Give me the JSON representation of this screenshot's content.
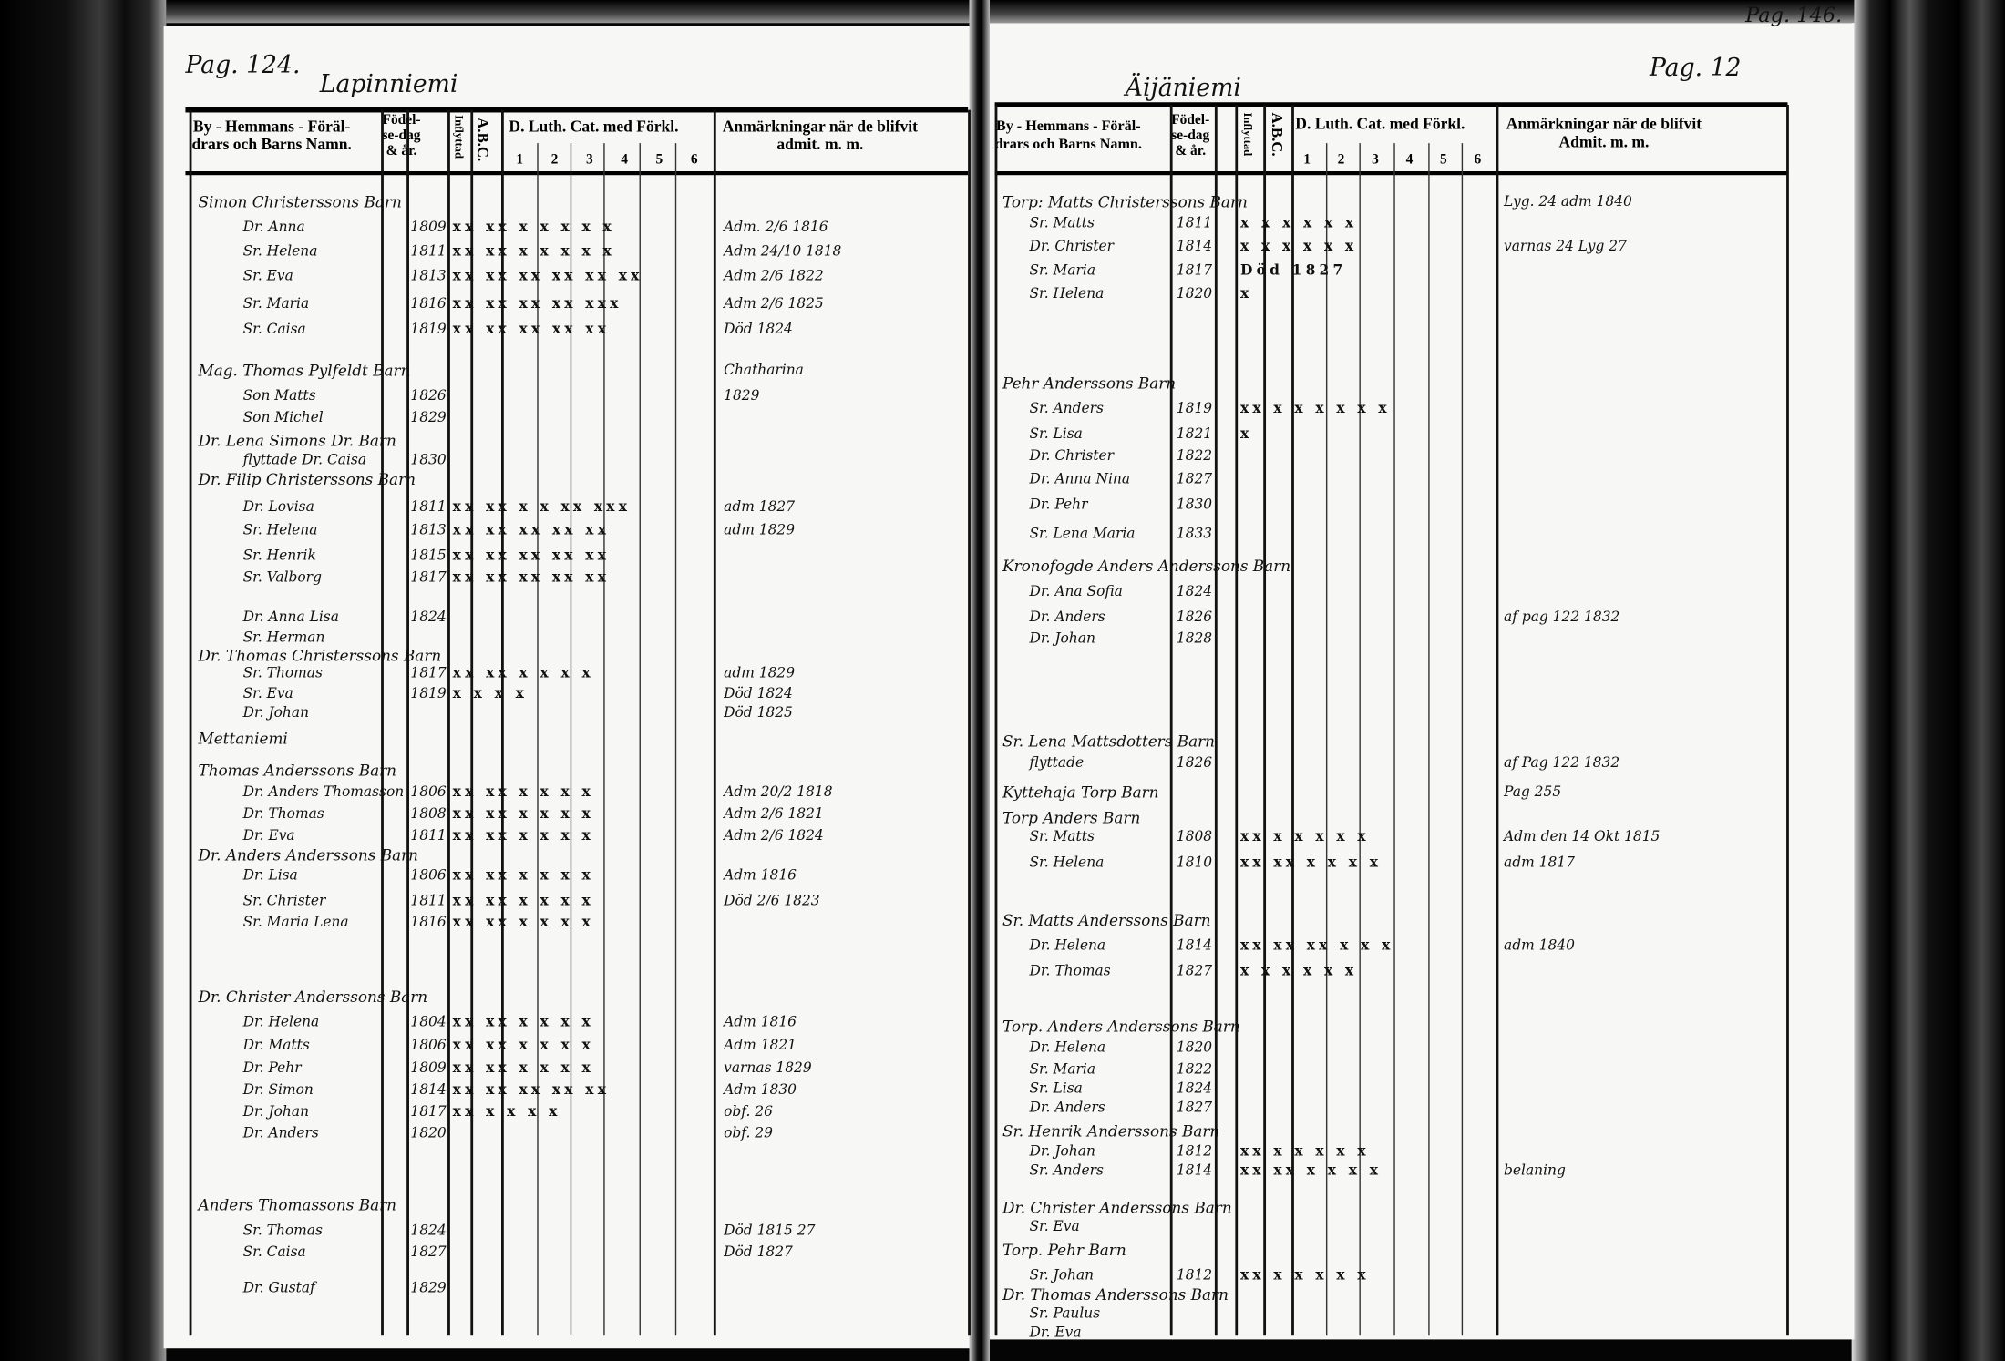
{
  "left_page": {
    "page_number": "Pag. 124.",
    "village": "Lapinniemi",
    "headers": {
      "name": "By - Hemmans - Föräl- drars och Barns Namn.",
      "name_line1": "By - Hemmans - Föräl-",
      "name_line2": "drars och Barns Namn.",
      "birth_line1": "Födel-",
      "birth_line2": "se-dag",
      "birth_line3": "& år.",
      "moved_in": "Inflyttad",
      "abc": "A.B.C.",
      "catechism": "D. Luth. Cat. med Förkl.",
      "catechism_cols": [
        "1",
        "2",
        "3",
        "4",
        "5",
        "6"
      ],
      "remarks_line1": "Anmärkningar när de blifvit",
      "remarks_line2": "admit. m. m."
    },
    "rows": [
      {
        "type": "household",
        "name": "Simon Christerssons Barn",
        "date": "",
        "marks": "",
        "remark": ""
      },
      {
        "type": "member",
        "name": "Dr. Anna",
        "date": "1809",
        "marks": "xx xx x x x x x",
        "remark": "Adm. 2/6 1816"
      },
      {
        "type": "member",
        "name": "Sr. Helena",
        "date": "1811",
        "marks": "xx xx x x x x x",
        "remark": "Adm 24/10 1818"
      },
      {
        "type": "member",
        "name": "Sr. Eva",
        "date": "1813",
        "marks": "xx xx xx xx xx xx",
        "remark": "Adm 2/6 1822"
      },
      {
        "type": "member",
        "name": "Sr. Maria",
        "date": "1816",
        "marks": "xx xx xx xx xxx",
        "remark": "Adm 2/6 1825"
      },
      {
        "type": "member",
        "name": "Sr. Caisa",
        "date": "1819",
        "marks": "xx xx xx xx xx",
        "remark": "Död 1824"
      },
      {
        "type": "household",
        "name": "Mag. Thomas Pylfeldt Barn",
        "date": "",
        "marks": "",
        "remark": "Chatharina"
      },
      {
        "type": "member",
        "name": "Son Matts",
        "date": "1826",
        "marks": "",
        "remark": "1829"
      },
      {
        "type": "member",
        "name": "Son Michel",
        "date": "1829",
        "marks": "",
        "remark": ""
      },
      {
        "type": "household",
        "name": "Dr. Lena Simons Dr. Barn",
        "date": "",
        "marks": "",
        "remark": ""
      },
      {
        "type": "member",
        "name": "flyttade Dr. Caisa",
        "date": "1830",
        "marks": "",
        "remark": ""
      },
      {
        "type": "household",
        "name": "Dr. Filip Christerssons Barn",
        "date": "",
        "marks": "",
        "remark": ""
      },
      {
        "type": "member",
        "name": "Dr. Lovisa",
        "date": "1811",
        "marks": "xx xx x x xx xxx",
        "remark": "adm 1827"
      },
      {
        "type": "member",
        "name": "Sr. Helena",
        "date": "1813",
        "marks": "xx xx xx xx xx",
        "remark": "adm 1829"
      },
      {
        "type": "member",
        "name": "Sr. Henrik",
        "date": "1815",
        "marks": "xx xx xx xx xx",
        "remark": ""
      },
      {
        "type": "member",
        "name": "Sr. Valborg",
        "date": "1817",
        "marks": "xx xx xx xx xx",
        "remark": ""
      },
      {
        "type": "member",
        "name": "Dr. Anna Lisa",
        "date": "1824",
        "marks": "",
        "remark": ""
      },
      {
        "type": "member",
        "name": "Sr. Herman",
        "date": "",
        "marks": "",
        "remark": ""
      },
      {
        "type": "household",
        "name": "Dr. Thomas Christerssons Barn",
        "date": "",
        "marks": "",
        "remark": ""
      },
      {
        "type": "member",
        "name": "Sr. Thomas",
        "date": "1817",
        "marks": "xx xx x x x x",
        "remark": "adm 1829"
      },
      {
        "type": "member",
        "name": "Sr. Eva",
        "date": "1819",
        "marks": "x x x x",
        "remark": "Död 1824"
      },
      {
        "type": "member",
        "name": "Dr. Johan",
        "date": "",
        "marks": "",
        "remark": "Död 1825"
      },
      {
        "type": "household",
        "name": "Mettaniemi",
        "date": "",
        "marks": "",
        "remark": ""
      },
      {
        "type": "household",
        "name": "Thomas Anderssons Barn",
        "date": "",
        "marks": "",
        "remark": ""
      },
      {
        "type": "member",
        "name": "Dr. Anders Thomasson",
        "date": "1806",
        "marks": "xx xx x x x x",
        "remark": "Adm 20/2 1818"
      },
      {
        "type": "member",
        "name": "Dr. Thomas",
        "date": "1808",
        "marks": "xx xx x x x x",
        "remark": "Adm 2/6 1821"
      },
      {
        "type": "member",
        "name": "Dr. Eva",
        "date": "1811",
        "marks": "xx xx x x x x",
        "remark": "Adm 2/6 1824"
      },
      {
        "type": "household",
        "name": "Dr. Anders Anderssons Barn",
        "date": "",
        "marks": "",
        "remark": ""
      },
      {
        "type": "member",
        "name": "Dr. Lisa",
        "date": "1806",
        "marks": "xx xx x x x x",
        "remark": "Adm 1816"
      },
      {
        "type": "member",
        "name": "Sr. Christer",
        "date": "1811",
        "marks": "xx xx x x x x",
        "remark": "Död 2/6 1823"
      },
      {
        "type": "member",
        "name": "Sr. Maria Lena",
        "date": "1816",
        "marks": "xx xx x x x x",
        "remark": ""
      },
      {
        "type": "household",
        "name": "Dr. Christer Anderssons Barn",
        "date": "",
        "marks": "",
        "remark": ""
      },
      {
        "type": "member",
        "name": "Dr. Helena",
        "date": "1804",
        "marks": "xx xx x x x x",
        "remark": "Adm 1816"
      },
      {
        "type": "member",
        "name": "Dr. Matts",
        "date": "1806",
        "marks": "xx xx x x x x",
        "remark": "Adm 1821"
      },
      {
        "type": "member",
        "name": "Dr. Pehr",
        "date": "1809",
        "marks": "xx xx x x x x",
        "remark": "varnas 1829"
      },
      {
        "type": "member",
        "name": "Dr. Simon",
        "date": "1814",
        "marks": "xx xx xx xx xx",
        "remark": "Adm 1830"
      },
      {
        "type": "member",
        "name": "Dr. Johan",
        "date": "1817",
        "marks": "xx x x x x",
        "remark": "obf. 26"
      },
      {
        "type": "member",
        "name": "Dr. Anders",
        "date": "1820",
        "marks": "",
        "remark": "obf. 29"
      },
      {
        "type": "household",
        "name": "Anders Thomassons Barn",
        "date": "",
        "marks": "",
        "remark": ""
      },
      {
        "type": "member",
        "name": "Sr. Thomas",
        "date": "1824",
        "marks": "",
        "remark": "Död 1815 27"
      },
      {
        "type": "member",
        "name": "Sr. Caisa",
        "date": "1827",
        "marks": "",
        "remark": "Död 1827"
      },
      {
        "type": "member",
        "name": "Dr. Gustaf",
        "date": "1829",
        "marks": "",
        "remark": ""
      }
    ]
  },
  "right_page": {
    "page_number": "Pag. 12",
    "corner_page_number": "Pag. 146.",
    "village": "Äijäniemi",
    "headers": {
      "name_line1": "By - Hemmans - Föräl-",
      "name_line2": "drars och Barns Namn.",
      "birth_line1": "Födel-",
      "birth_line2": "se-dag",
      "birth_line3": "& år.",
      "moved_in": "Inflyttad",
      "abc": "A.B.C.",
      "catechism": "D. Luth. Cat. med Förkl.",
      "catechism_cols": [
        "1",
        "2",
        "3",
        "4",
        "5",
        "6"
      ],
      "remarks_line1": "Anmärkningar när de blifvit",
      "remarks_line2": "Admit. m. m."
    },
    "rows": [
      {
        "type": "household",
        "name": "Torp: Matts Christerssons Barn",
        "date": "",
        "marks": "",
        "remark": "Lyg. 24 adm 1840"
      },
      {
        "type": "member",
        "name": "Sr. Matts",
        "date": "1811",
        "marks": "x x x x x x",
        "remark": ""
      },
      {
        "type": "member",
        "name": "Dr. Christer",
        "date": "1814",
        "marks": "x x x x x x",
        "remark": "varnas 24 Lyg 27"
      },
      {
        "type": "member",
        "name": "Sr. Maria",
        "date": "1817",
        "marks": "Död 1827",
        "remark": ""
      },
      {
        "type": "member",
        "name": "Sr. Helena",
        "date": "1820",
        "marks": "x",
        "remark": ""
      },
      {
        "type": "household",
        "name": "Pehr Anderssons Barn",
        "date": "",
        "marks": "",
        "remark": ""
      },
      {
        "type": "member",
        "name": "Sr. Anders",
        "date": "1819",
        "marks": "xx x x x x x x",
        "remark": ""
      },
      {
        "type": "member",
        "name": "Sr. Lisa",
        "date": "1821",
        "marks": "x",
        "remark": ""
      },
      {
        "type": "member",
        "name": "Dr. Christer",
        "date": "1822",
        "marks": "",
        "remark": ""
      },
      {
        "type": "member",
        "name": "Dr. Anna Nina",
        "date": "1827",
        "marks": "",
        "remark": ""
      },
      {
        "type": "member",
        "name": "Dr. Pehr",
        "date": "1830",
        "marks": "",
        "remark": ""
      },
      {
        "type": "member",
        "name": "Sr. Lena Maria",
        "date": "1833",
        "marks": "",
        "remark": ""
      },
      {
        "type": "household",
        "name": "Kronofogde Anders Anderssons Barn",
        "date": "",
        "marks": "",
        "remark": ""
      },
      {
        "type": "member",
        "name": "Dr. Ana Sofia",
        "date": "1824",
        "marks": "",
        "remark": ""
      },
      {
        "type": "member",
        "name": "Dr. Anders",
        "date": "1826",
        "marks": "",
        "remark": "af pag 122 1832"
      },
      {
        "type": "member",
        "name": "Dr. Johan",
        "date": "1828",
        "marks": "",
        "remark": ""
      },
      {
        "type": "household",
        "name": "Sr. Lena Mattsdotters Barn",
        "date": "",
        "marks": "",
        "remark": ""
      },
      {
        "type": "member",
        "name": "flyttade",
        "date": "1826",
        "marks": "",
        "remark": "af Pag 122 1832"
      },
      {
        "type": "household",
        "name": "Kyttehaja Torp Barn",
        "date": "",
        "marks": "",
        "remark": "Pag 255"
      },
      {
        "type": "household",
        "name": "Torp Anders Barn",
        "date": "",
        "marks": "",
        "remark": ""
      },
      {
        "type": "member",
        "name": "Sr. Matts",
        "date": "1808",
        "marks": "xx x x x x x",
        "remark": "Adm den 14 Okt 1815"
      },
      {
        "type": "member",
        "name": "Sr. Helena",
        "date": "1810",
        "marks": "xx xx x x x x",
        "remark": "adm 1817"
      },
      {
        "type": "household",
        "name": "Sr. Matts Anderssons Barn",
        "date": "",
        "marks": "",
        "remark": ""
      },
      {
        "type": "member",
        "name": "Dr. Helena",
        "date": "1814",
        "marks": "xx xx xx x x x",
        "remark": "adm 1840"
      },
      {
        "type": "member",
        "name": "Dr. Thomas",
        "date": "1827",
        "marks": "x x x x x x",
        "remark": ""
      },
      {
        "type": "household",
        "name": "Torp. Anders Anderssons Barn",
        "date": "",
        "marks": "",
        "remark": ""
      },
      {
        "type": "member",
        "name": "Dr. Helena",
        "date": "1820",
        "marks": "",
        "remark": ""
      },
      {
        "type": "member",
        "name": "Sr. Maria",
        "date": "1822",
        "marks": "",
        "remark": ""
      },
      {
        "type": "member",
        "name": "Sr. Lisa",
        "date": "1824",
        "marks": "",
        "remark": ""
      },
      {
        "type": "member",
        "name": "Dr. Anders",
        "date": "1827",
        "marks": "",
        "remark": ""
      },
      {
        "type": "household",
        "name": "Sr. Henrik Anderssons Barn",
        "date": "",
        "marks": "",
        "remark": ""
      },
      {
        "type": "member",
        "name": "Dr. Johan",
        "date": "1812",
        "marks": "xx x x x x x",
        "remark": ""
      },
      {
        "type": "member",
        "name": "Sr. Anders",
        "date": "1814",
        "marks": "xx xx x x x x",
        "remark": "belaning"
      },
      {
        "type": "household",
        "name": "Dr. Christer Anderssons Barn",
        "date": "",
        "marks": "",
        "remark": ""
      },
      {
        "type": "member",
        "name": "Sr. Eva",
        "date": "",
        "marks": "",
        "remark": ""
      },
      {
        "type": "household",
        "name": "Torp. Pehr Barn",
        "date": "",
        "marks": "",
        "remark": ""
      },
      {
        "type": "member",
        "name": "Sr. Johan",
        "date": "1812",
        "marks": "xx x x x x x",
        "remark": ""
      },
      {
        "type": "household",
        "name": "Dr. Thomas Anderssons Barn",
        "date": "",
        "marks": "",
        "remark": ""
      },
      {
        "type": "member",
        "name": "Sr. Paulus",
        "date": "",
        "marks": "",
        "remark": ""
      },
      {
        "type": "member",
        "name": "Dr. Eva",
        "date": "",
        "marks": "",
        "remark": ""
      }
    ]
  }
}
